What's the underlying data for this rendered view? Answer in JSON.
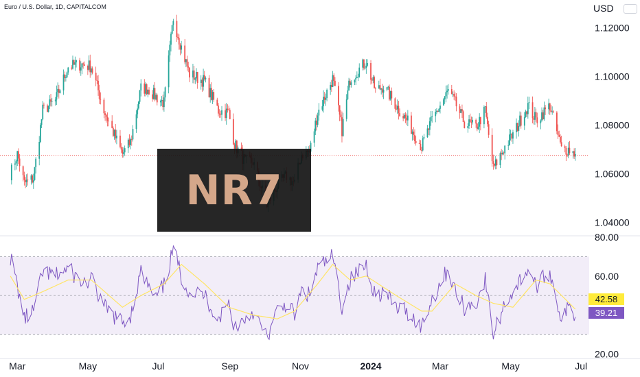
{
  "header": {
    "title": "Euro / U.S. Dollar, 1D, CAPITALCOM",
    "currency": "USD"
  },
  "overlay": {
    "text": "NR7"
  },
  "chart_data": [
    {
      "type": "candlestick",
      "symbol": "EURUSD",
      "ylim": [
        1.035,
        1.128
      ],
      "ticks": [
        "1.12000",
        "1.10000",
        "1.08000",
        "1.06000",
        "1.04000"
      ],
      "tick_values": [
        1.12,
        1.1,
        1.08,
        1.06,
        1.04
      ],
      "last_price": 1.0675,
      "anchors": [
        [
          "2023-02-23",
          1.06
        ],
        [
          "2023-03-01",
          1.068
        ],
        [
          "2023-03-07",
          1.056
        ],
        [
          "2023-03-15",
          1.058
        ],
        [
          "2023-03-23",
          1.086
        ],
        [
          "2023-04-03",
          1.09
        ],
        [
          "2023-04-14",
          1.104
        ],
        [
          "2023-04-26",
          1.105
        ],
        [
          "2023-05-04",
          1.104
        ],
        [
          "2023-05-15",
          1.086
        ],
        [
          "2023-05-31",
          1.068
        ],
        [
          "2023-06-07",
          1.073
        ],
        [
          "2023-06-16",
          1.095
        ],
        [
          "2023-06-22",
          1.095
        ],
        [
          "2023-06-28",
          1.092
        ],
        [
          "2023-07-06",
          1.089
        ],
        [
          "2023-07-14",
          1.124
        ],
        [
          "2023-07-21",
          1.112
        ],
        [
          "2023-07-28",
          1.101
        ],
        [
          "2023-08-10",
          1.098
        ],
        [
          "2023-08-22",
          1.086
        ],
        [
          "2023-08-31",
          1.085
        ],
        [
          "2023-09-05",
          1.072
        ],
        [
          "2023-09-14",
          1.065
        ],
        [
          "2023-09-21",
          1.065
        ],
        [
          "2023-10-03",
          1.047
        ],
        [
          "2023-10-12",
          1.055
        ],
        [
          "2023-10-20",
          1.059
        ],
        [
          "2023-10-27",
          1.056
        ],
        [
          "2023-11-02",
          1.068
        ],
        [
          "2023-11-09",
          1.069
        ],
        [
          "2023-11-16",
          1.085
        ],
        [
          "2023-11-29",
          1.099
        ],
        [
          "2023-12-07",
          1.078
        ],
        [
          "2023-12-14",
          1.099
        ],
        [
          "2023-12-28",
          1.106
        ],
        [
          "2024-01-05",
          1.094
        ],
        [
          "2024-01-12",
          1.096
        ],
        [
          "2024-01-23",
          1.088
        ],
        [
          "2024-02-01",
          1.082
        ],
        [
          "2024-02-14",
          1.071
        ],
        [
          "2024-02-23",
          1.082
        ],
        [
          "2024-03-08",
          1.094
        ],
        [
          "2024-03-14",
          1.089
        ],
        [
          "2024-03-22",
          1.081
        ],
        [
          "2024-04-01",
          1.079
        ],
        [
          "2024-04-09",
          1.086
        ],
        [
          "2024-04-16",
          1.062
        ],
        [
          "2024-04-26",
          1.071
        ],
        [
          "2024-05-03",
          1.076
        ],
        [
          "2024-05-16",
          1.088
        ],
        [
          "2024-05-23",
          1.082
        ],
        [
          "2024-06-04",
          1.088
        ],
        [
          "2024-06-14",
          1.07
        ],
        [
          "2024-06-21",
          1.07
        ],
        [
          "2024-06-26",
          1.068
        ]
      ]
    },
    {
      "type": "line",
      "indicator": "RSI",
      "ylim": [
        18,
        80
      ],
      "ticks": [
        "80.00",
        "60.00",
        "20.00"
      ],
      "tick_values": [
        80,
        60,
        20
      ],
      "bands": [
        70,
        50,
        30
      ],
      "series": [
        {
          "values": [
            [
              "2023-02-23",
              70
            ],
            [
              "2023-03-01",
              55
            ],
            [
              "2023-03-07",
              38
            ],
            [
              "2023-03-15",
              42
            ],
            [
              "2023-03-23",
              62
            ],
            [
              "2023-04-03",
              60
            ],
            [
              "2023-04-14",
              64
            ],
            [
              "2023-04-26",
              56
            ],
            [
              "2023-05-04",
              58
            ],
            [
              "2023-05-15",
              44
            ],
            [
              "2023-05-31",
              36
            ],
            [
              "2023-06-07",
              40
            ],
            [
              "2023-06-16",
              62
            ],
            [
              "2023-06-22",
              55
            ],
            [
              "2023-06-28",
              48
            ],
            [
              "2023-07-06",
              55
            ],
            [
              "2023-07-14",
              74
            ],
            [
              "2023-07-21",
              60
            ],
            [
              "2023-07-28",
              52
            ],
            [
              "2023-08-10",
              50
            ],
            [
              "2023-08-22",
              38
            ],
            [
              "2023-08-31",
              46
            ],
            [
              "2023-09-05",
              34
            ],
            [
              "2023-09-14",
              38
            ],
            [
              "2023-09-21",
              42
            ],
            [
              "2023-10-03",
              28
            ],
            [
              "2023-10-12",
              42
            ],
            [
              "2023-10-20",
              46
            ],
            [
              "2023-10-27",
              40
            ],
            [
              "2023-11-02",
              52
            ],
            [
              "2023-11-09",
              50
            ],
            [
              "2023-11-16",
              64
            ],
            [
              "2023-11-29",
              70
            ],
            [
              "2023-12-07",
              44
            ],
            [
              "2023-12-14",
              58
            ],
            [
              "2023-12-28",
              66
            ],
            [
              "2024-01-05",
              50
            ],
            [
              "2024-01-12",
              52
            ],
            [
              "2024-01-23",
              44
            ],
            [
              "2024-02-01",
              42
            ],
            [
              "2024-02-14",
              34
            ],
            [
              "2024-02-23",
              48
            ],
            [
              "2024-03-08",
              64
            ],
            [
              "2024-03-14",
              52
            ],
            [
              "2024-03-22",
              44
            ],
            [
              "2024-04-01",
              46
            ],
            [
              "2024-04-09",
              58
            ],
            [
              "2024-04-16",
              30
            ],
            [
              "2024-04-26",
              46
            ],
            [
              "2024-05-03",
              52
            ],
            [
              "2024-05-16",
              64
            ],
            [
              "2024-05-23",
              55
            ],
            [
              "2024-06-04",
              62
            ],
            [
              "2024-06-14",
              38
            ],
            [
              "2024-06-21",
              44
            ],
            [
              "2024-06-26",
              39
            ]
          ]
        },
        {
          "values": [
            [
              "2023-02-23",
              60
            ],
            [
              "2023-03-07",
              48
            ],
            [
              "2023-03-23",
              52
            ],
            [
              "2023-04-14",
              58
            ],
            [
              "2023-05-04",
              58
            ],
            [
              "2023-05-31",
              44
            ],
            [
              "2023-06-16",
              50
            ],
            [
              "2023-07-06",
              56
            ],
            [
              "2023-07-21",
              66
            ],
            [
              "2023-08-10",
              56
            ],
            [
              "2023-08-31",
              44
            ],
            [
              "2023-09-21",
              40
            ],
            [
              "2023-10-12",
              38
            ],
            [
              "2023-10-27",
              42
            ],
            [
              "2023-11-16",
              56
            ],
            [
              "2023-11-29",
              66
            ],
            [
              "2023-12-14",
              58
            ],
            [
              "2023-12-28",
              60
            ],
            [
              "2024-01-23",
              50
            ],
            [
              "2024-02-14",
              42
            ],
            [
              "2024-02-23",
              42
            ],
            [
              "2024-03-14",
              56
            ],
            [
              "2024-04-01",
              50
            ],
            [
              "2024-04-16",
              46
            ],
            [
              "2024-05-03",
              44
            ],
            [
              "2024-05-23",
              58
            ],
            [
              "2024-06-04",
              56
            ],
            [
              "2024-06-26",
              43
            ]
          ]
        }
      ],
      "badges": {
        "ma": "42.58",
        "rsi": "39.21"
      },
      "colors": {
        "rsi": "#7e57c2",
        "ma": "#ffe566",
        "band_fill": "#ede7f6"
      }
    }
  ],
  "x_axis": {
    "ticks": [
      {
        "label": "Mar",
        "date": "2023-03-01"
      },
      {
        "label": "May",
        "date": "2023-05-01"
      },
      {
        "label": "Jul",
        "date": "2023-07-01"
      },
      {
        "label": "Sep",
        "date": "2023-09-01"
      },
      {
        "label": "Nov",
        "date": "2023-11-01"
      },
      {
        "label": "2024",
        "date": "2024-01-01"
      },
      {
        "label": "Mar",
        "date": "2024-03-01"
      },
      {
        "label": "May",
        "date": "2024-05-01"
      },
      {
        "label": "Jul",
        "date": "2024-07-01"
      }
    ],
    "range": [
      "2023-02-14",
      "2024-07-08"
    ]
  },
  "colors": {
    "up": "#26a69a",
    "down": "#ef5350",
    "price_line": "#ef5350",
    "overlay_text": "#d4a78a"
  }
}
